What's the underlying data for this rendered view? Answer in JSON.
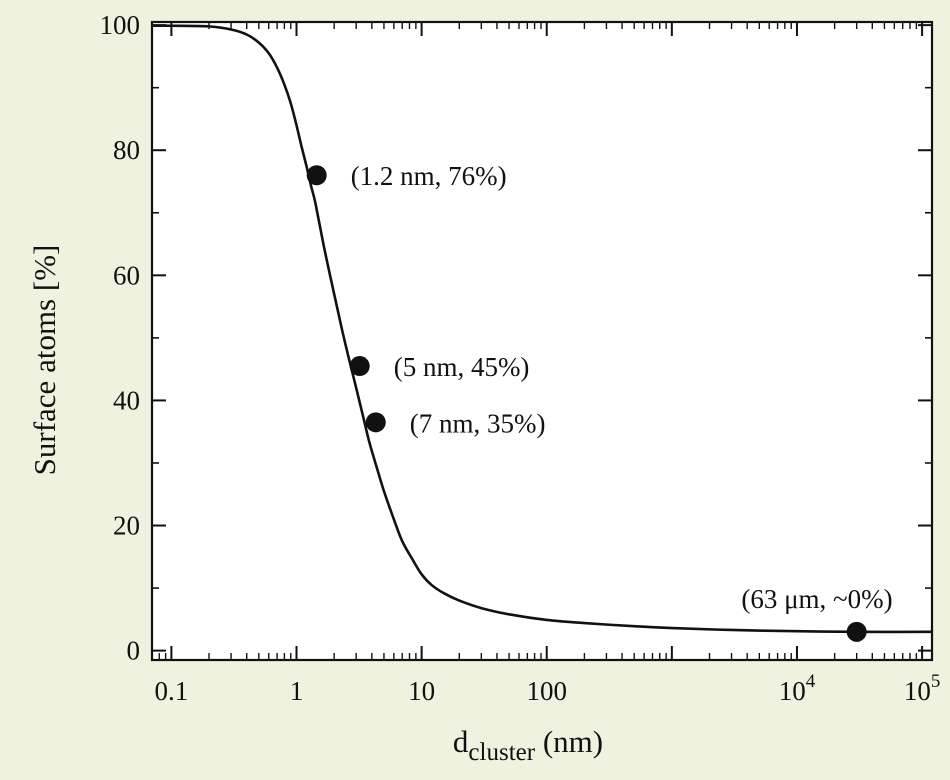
{
  "colors": {
    "background": "#eef2df",
    "plot_area": "#ffffff",
    "ink": "#111111"
  },
  "chart_data": {
    "type": "scatter",
    "title": "",
    "xlabel": {
      "main": "d",
      "sub": "cluster",
      "unit": " (nm)"
    },
    "ylabel": "Surface atoms [%]",
    "x_scale": "log",
    "xlim": [
      0.07,
      120000
    ],
    "ylim": [
      -1.5,
      100.5
    ],
    "grid": false,
    "legend": "none",
    "x_ticks": [
      {
        "value": 0.1,
        "base": "0.1",
        "exp": ""
      },
      {
        "value": 1,
        "base": "1",
        "exp": ""
      },
      {
        "value": 10,
        "base": "10",
        "exp": ""
      },
      {
        "value": 100,
        "base": "100",
        "exp": ""
      },
      {
        "value": 10000,
        "base": "10",
        "exp": "4"
      },
      {
        "value": 100000,
        "base": "10",
        "exp": "5"
      }
    ],
    "y_ticks": [
      {
        "value": 0,
        "label": "0"
      },
      {
        "value": 20,
        "label": "20"
      },
      {
        "value": 40,
        "label": "40"
      },
      {
        "value": 60,
        "label": "60"
      },
      {
        "value": 80,
        "label": "80"
      },
      {
        "value": 100,
        "label": "100"
      }
    ],
    "curve": {
      "x": [
        0.07,
        0.1,
        0.2,
        0.3,
        0.4,
        0.5,
        0.6,
        0.7,
        0.8,
        0.9,
        1.0,
        1.1,
        1.2,
        1.3,
        1.4,
        1.5,
        1.7,
        2.0,
        2.3,
        2.6,
        3.0,
        3.4,
        3.8,
        4.2,
        5.0,
        6.0,
        7.0,
        8.5,
        10,
        12,
        15,
        20,
        30,
        50,
        100,
        200,
        500,
        1000,
        3000,
        10000,
        30000,
        120000
      ],
      "y": [
        99.9,
        99.9,
        99.8,
        99.3,
        98.5,
        97.2,
        95.5,
        93.2,
        90.5,
        87.5,
        84.0,
        80.5,
        77.5,
        74.5,
        72.0,
        69.0,
        63.5,
        57.0,
        51.5,
        47.0,
        42.0,
        37.5,
        33.5,
        30.5,
        25.5,
        21.0,
        17.5,
        14.5,
        12.2,
        10.5,
        9.2,
        8.0,
        6.8,
        5.8,
        4.9,
        4.4,
        3.9,
        3.6,
        3.3,
        3.1,
        3.0,
        3.0
      ]
    },
    "points": [
      {
        "x": 1.45,
        "y": 76,
        "label": "(1.2 nm, 76%)"
      },
      {
        "x": 3.2,
        "y": 45.5,
        "label": "(5 nm, 45%)"
      },
      {
        "x": 4.3,
        "y": 36.5,
        "label": "(7 nm, 35%)"
      },
      {
        "x": 30000,
        "y": 3,
        "label": "(63 μm, ~0%)"
      }
    ]
  }
}
